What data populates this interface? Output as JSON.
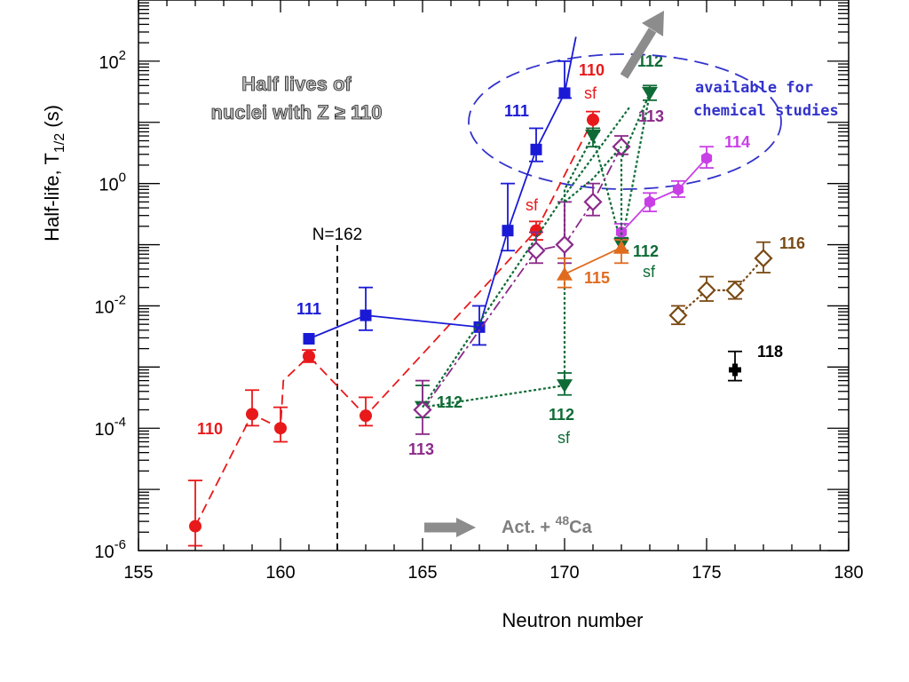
{
  "chart_data": {
    "type": "scatter",
    "title": "Half lives of nuclei with Z ≥ 110",
    "xlabel": "Neutron number",
    "ylabel": "Half-life,  T1/2 (s)",
    "ylabel_main": "Half-life,  T",
    "ylabel_sub": "1/2",
    "ylabel_unit": " (s)",
    "x_scale": "linear",
    "y_scale": "log",
    "xlim": [
      155,
      180
    ],
    "ylim": [
      1e-06,
      1000
    ],
    "x_ticks": [
      "155",
      "160",
      "165",
      "170",
      "175",
      "180"
    ],
    "y_ticks": [
      {
        "base": "10",
        "exp": "-6",
        "value": 1e-06
      },
      {
        "base": "10",
        "exp": "-4",
        "value": 0.0001
      },
      {
        "base": "10",
        "exp": "-2",
        "value": 0.01
      },
      {
        "base": "10",
        "exp": "0",
        "value": 1
      },
      {
        "base": "10",
        "exp": "2",
        "value": 100
      }
    ],
    "series": [
      {
        "name": "110",
        "color": "#e8191b",
        "marker": "circle",
        "line": "dashed",
        "points": [
          {
            "x": 157,
            "y": 2.5e-06,
            "lo": 1.2e-06,
            "hi": 1.4e-05
          },
          {
            "x": 159,
            "y": 0.00017,
            "lo": 0.00011,
            "hi": 0.00042
          },
          {
            "x": 160,
            "y": 0.0001,
            "lo": 6e-05,
            "hi": 0.00022
          },
          {
            "x": 160.1,
            "y": 0.0006,
            "hidden": true
          },
          {
            "x": 161,
            "y": 0.0015,
            "lo": 0.0012,
            "hi": 0.0019
          },
          {
            "x": 163,
            "y": 0.00016,
            "lo": 0.00011,
            "hi": 0.00032
          },
          {
            "x": 169,
            "y": 0.17,
            "lo": 0.12,
            "hi": 0.24
          },
          {
            "x": 171,
            "y": 11,
            "lo": 7,
            "hi": 15
          }
        ]
      },
      {
        "name": "111",
        "color": "#1a1ad6",
        "marker": "square",
        "line": "solid",
        "points": [
          {
            "x": 161,
            "y": 0.0029
          },
          {
            "x": 163,
            "y": 0.007,
            "lo": 0.004,
            "hi": 0.02
          },
          {
            "x": 167,
            "y": 0.0045,
            "lo": 0.0023,
            "hi": 0.01
          },
          {
            "x": 168,
            "y": 0.17,
            "lo": 0.08,
            "hi": 1.0
          },
          {
            "x": 169,
            "y": 3.6,
            "lo": 2.3,
            "hi": 8
          },
          {
            "x": 170,
            "y": 30,
            "lo": 25,
            "hi": 100
          },
          {
            "x": 170.4,
            "y": 250,
            "hidden": true
          }
        ]
      },
      {
        "name": "112",
        "color": "#0e6b36",
        "marker": "triangle-down",
        "line": "dotted",
        "points": [
          {
            "x": 165,
            "y": 0.00022,
            "lo": 0.00015,
            "hi": 0.0005
          },
          {
            "x": 170,
            "y": 0.0005,
            "lo": 0.00035,
            "hi": 0.0008
          },
          {
            "x": 170,
            "y": 0.8,
            "hidden": true
          },
          {
            "x": 171,
            "y": 6,
            "lo": 4,
            "hi": 8
          },
          {
            "x": 172,
            "y": 0.1,
            "lo": 0.08,
            "hi": 0.13
          },
          {
            "x": 173,
            "y": 30,
            "lo": 23,
            "hi": 40
          }
        ]
      },
      {
        "name": "113",
        "color": "#8b2a8a",
        "marker": "diamond-open",
        "line": "dashdot",
        "points": [
          {
            "x": 165,
            "y": 0.0002,
            "lo": 8e-05,
            "hi": 0.0006
          },
          {
            "x": 169,
            "y": 0.08,
            "lo": 0.05,
            "hi": 0.16
          },
          {
            "x": 170,
            "y": 0.1,
            "lo": 0.05,
            "hi": 0.5
          },
          {
            "x": 171,
            "y": 0.5,
            "lo": 0.3,
            "hi": 1.0
          },
          {
            "x": 172,
            "y": 4,
            "lo": 3,
            "hi": 6
          }
        ]
      },
      {
        "name": "114",
        "color": "#c93fe6",
        "marker": "hexagon",
        "line": "solid",
        "points": [
          {
            "x": 172,
            "y": 0.16,
            "lo": 0.12,
            "hi": 0.22
          },
          {
            "x": 173,
            "y": 0.5,
            "lo": 0.35,
            "hi": 0.7
          },
          {
            "x": 174,
            "y": 0.8,
            "lo": 0.6,
            "hi": 1.1
          },
          {
            "x": 175,
            "y": 2.6,
            "lo": 1.8,
            "hi": 4
          }
        ]
      },
      {
        "name": "115",
        "color": "#e06b1f",
        "marker": "triangle-up",
        "line": "solid",
        "points": [
          {
            "x": 170,
            "y": 0.033,
            "lo": 0.02,
            "hi": 0.06
          },
          {
            "x": 172,
            "y": 0.09,
            "lo": 0.05,
            "hi": 0.12
          }
        ]
      },
      {
        "name": "116",
        "color": "#7a4a14",
        "marker": "diamond-open",
        "line": "dotted",
        "points": [
          {
            "x": 174,
            "y": 0.007,
            "lo": 0.005,
            "hi": 0.01
          },
          {
            "x": 175,
            "y": 0.018,
            "lo": 0.012,
            "hi": 0.03
          },
          {
            "x": 176,
            "y": 0.018,
            "lo": 0.013,
            "hi": 0.025
          },
          {
            "x": 177,
            "y": 0.06,
            "lo": 0.035,
            "hi": 0.11
          }
        ]
      },
      {
        "name": "118",
        "color": "#000000",
        "marker": "cross",
        "line": "none",
        "points": [
          {
            "x": 176,
            "y": 0.0009,
            "lo": 0.0006,
            "hi": 0.0018
          }
        ]
      },
      {
        "name": "",
        "color": "#0e6b36",
        "marker": "none",
        "line": "dotted",
        "points": [
          {
            "x": 165,
            "y": 0.00022
          },
          {
            "x": 169.9,
            "y": 0.55
          },
          {
            "x": 172.3,
            "y": 18
          }
        ]
      },
      {
        "name": "",
        "color": "#0e6b36",
        "marker": "none",
        "line": "dotted",
        "points": [
          {
            "x": 172,
            "y": 0.12
          },
          {
            "x": 172,
            "y": 2.5
          },
          {
            "x": 173,
            "y": 30
          }
        ]
      },
      {
        "name": "",
        "color": "#0e6b36",
        "marker": "none",
        "line": "dotted",
        "points": [
          {
            "x": 170,
            "y": 0.5
          },
          {
            "x": 171,
            "y": 1.2
          },
          {
            "x": 172,
            "y": 4
          }
        ]
      }
    ],
    "labels": {
      "z110_left": "110",
      "z110_top": "110",
      "sf_110_top": "sf",
      "sf_110_mid": "sf",
      "z111_left": "111",
      "z111_top": "111",
      "z112_top": "112",
      "z112_left": "112",
      "z112_bottom": "112",
      "sf_112_bottom": "sf",
      "z112_right": "112",
      "sf_112_right": "sf",
      "z113_left": "113",
      "z113_top": "113",
      "z114": "114",
      "z115": "115",
      "z116": "116",
      "z118": "118",
      "n162": "N=162",
      "title_line1": "Half lives of",
      "title_line2": "nuclei with Z ≥ 110",
      "chem_line1": "available for",
      "chem_line2": "chemical studies",
      "act_label_prefix": "Act. + ",
      "act_label_mass": "48",
      "act_label_element": "Ca"
    },
    "colors": {
      "ellipse": "#3333cc",
      "arrow": "#8c8c8c",
      "n162_line": "#000000"
    },
    "grid": false,
    "legend": "none"
  }
}
